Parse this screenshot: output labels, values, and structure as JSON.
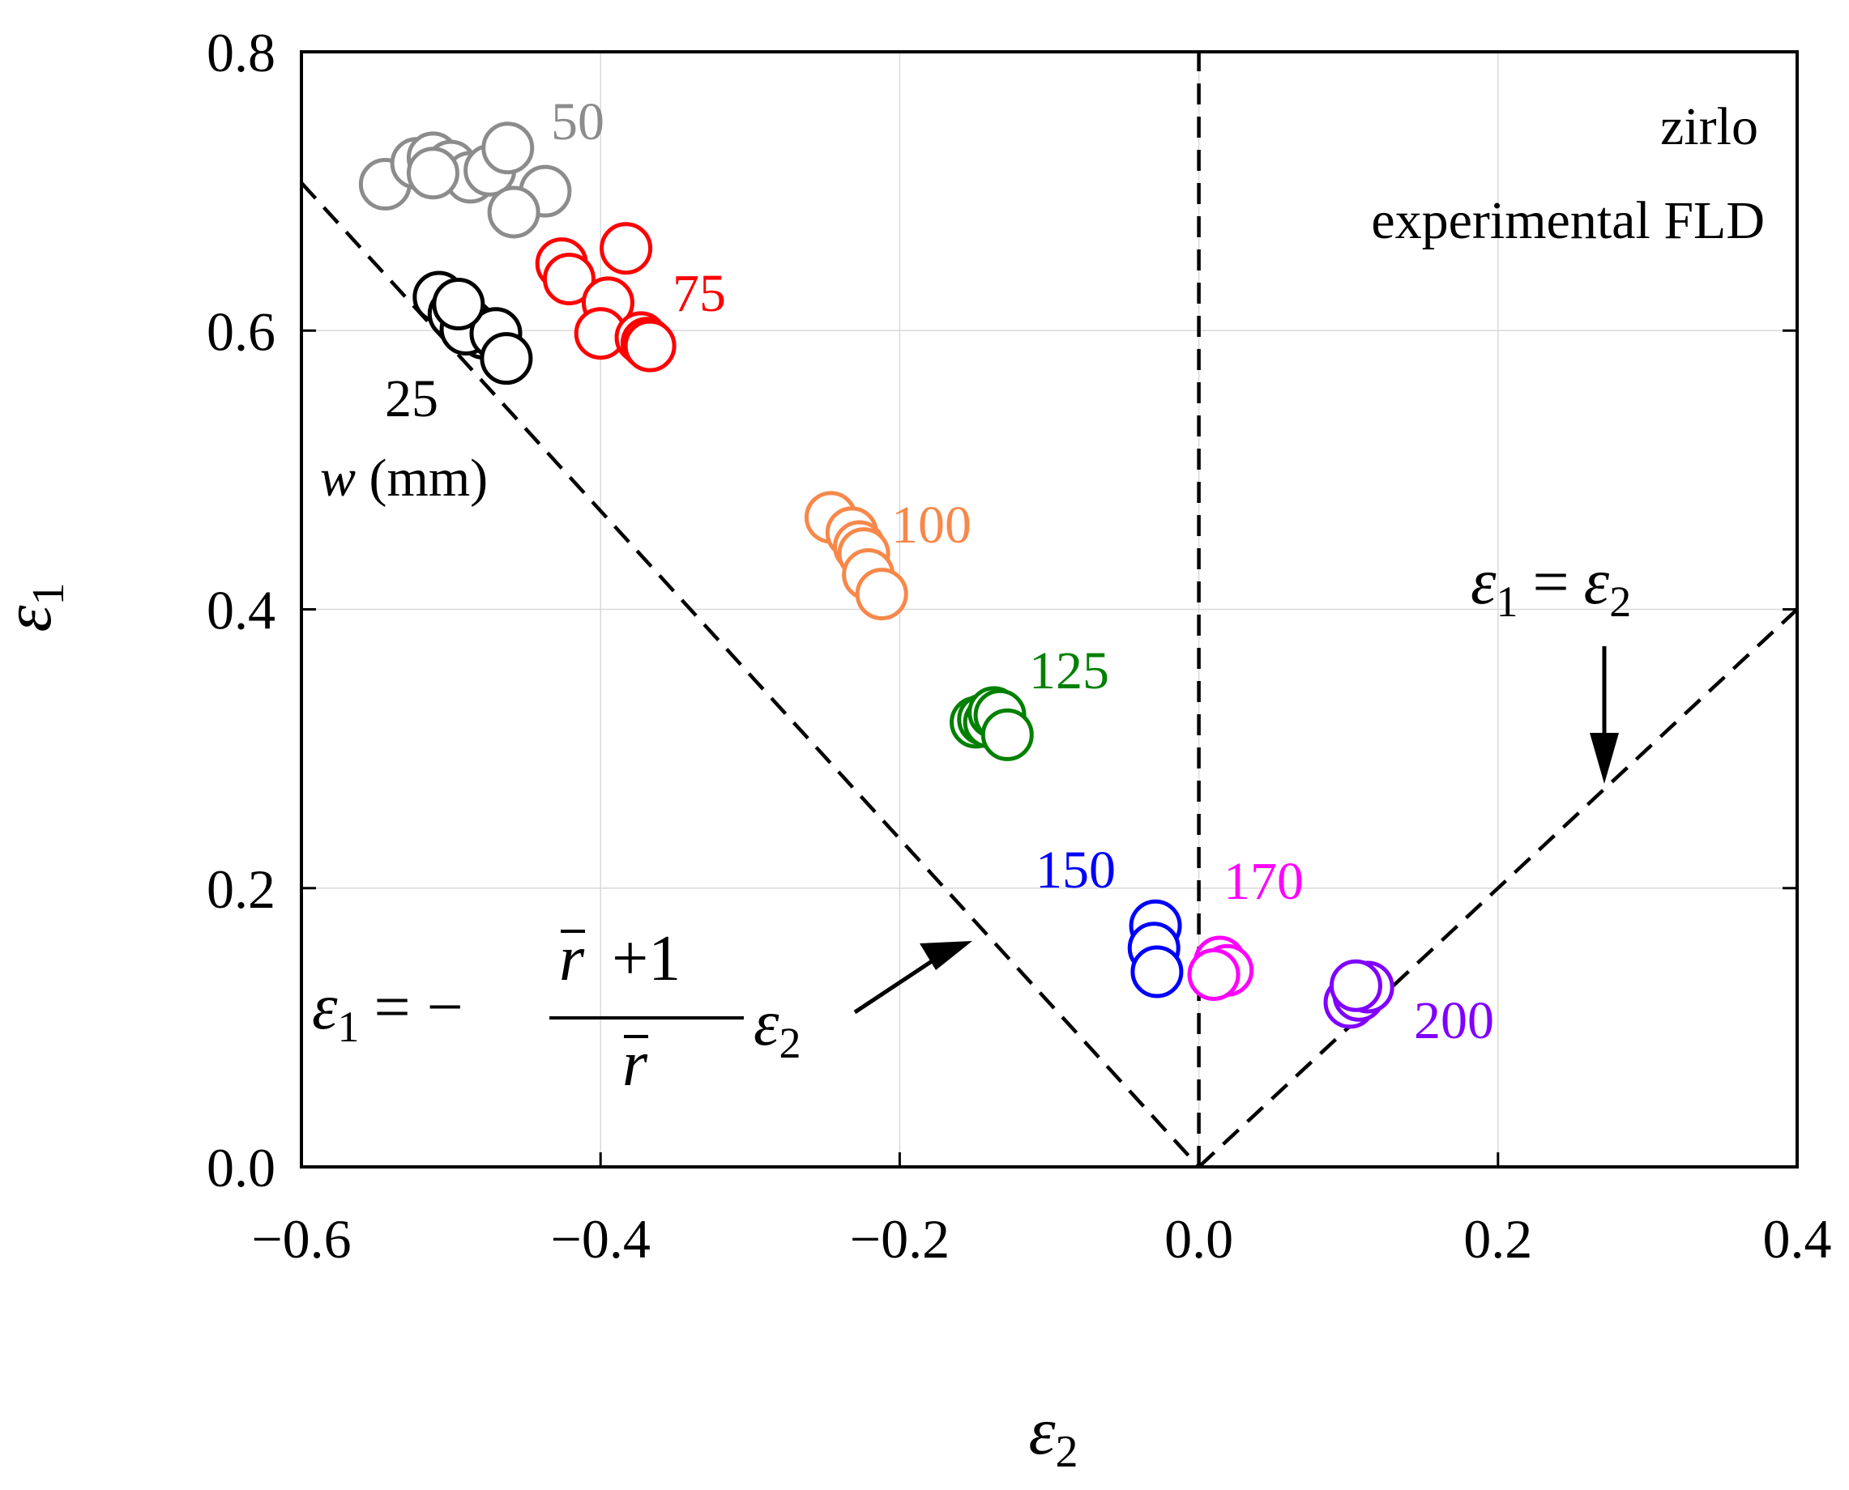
{
  "chart_data": {
    "type": "scatter",
    "title": "",
    "xlabel": "ε2",
    "ylabel": "ε1",
    "xlim": [
      -0.6,
      0.4
    ],
    "ylim": [
      0.0,
      0.8
    ],
    "grid": true,
    "xticks": [
      -0.6,
      -0.4,
      -0.2,
      0.0,
      0.2,
      0.4
    ],
    "yticks": [
      0.0,
      0.2,
      0.4,
      0.6,
      0.8
    ],
    "xtick_labels": [
      "−0.6",
      "−0.4",
      "−0.2",
      "0.0",
      "0.2",
      "0.4"
    ],
    "ytick_labels": [
      "0.0",
      "0.2",
      "0.4",
      "0.6",
      "0.8"
    ],
    "annotation": {
      "line1": "zirlo",
      "line2": "experimental FLD"
    },
    "width_legend": {
      "var": "w",
      "unit": "(mm)"
    },
    "series": [
      {
        "name": "25",
        "color": "#000000",
        "points": [
          [
            -0.508,
            0.624
          ],
          [
            -0.498,
            0.612
          ],
          [
            -0.488,
            0.604
          ],
          [
            -0.478,
            0.598
          ],
          [
            -0.49,
            0.601
          ],
          [
            -0.47,
            0.598
          ],
          [
            -0.495,
            0.619
          ],
          [
            -0.463,
            0.58
          ]
        ]
      },
      {
        "name": "50",
        "color": "#8c8c8c",
        "points": [
          [
            -0.544,
            0.705
          ],
          [
            -0.523,
            0.72
          ],
          [
            -0.512,
            0.724
          ],
          [
            -0.5,
            0.718
          ],
          [
            -0.487,
            0.71
          ],
          [
            -0.474,
            0.715
          ],
          [
            -0.462,
            0.731
          ],
          [
            -0.437,
            0.7
          ],
          [
            -0.458,
            0.685
          ],
          [
            -0.512,
            0.713
          ]
        ]
      },
      {
        "name": "75",
        "color": "#ff0000",
        "points": [
          [
            -0.426,
            0.648
          ],
          [
            -0.421,
            0.637
          ],
          [
            -0.395,
            0.62
          ],
          [
            -0.4,
            0.598
          ],
          [
            -0.383,
            0.659
          ],
          [
            -0.373,
            0.595
          ],
          [
            -0.369,
            0.591
          ],
          [
            -0.367,
            0.589
          ]
        ]
      },
      {
        "name": "100",
        "color": "#f7884a",
        "points": [
          [
            -0.246,
            0.466
          ],
          [
            -0.232,
            0.455
          ],
          [
            -0.227,
            0.445
          ],
          [
            -0.224,
            0.44
          ],
          [
            -0.221,
            0.425
          ],
          [
            -0.212,
            0.411
          ]
        ]
      },
      {
        "name": "125",
        "color": "#008000",
        "points": [
          [
            -0.149,
            0.319
          ],
          [
            -0.144,
            0.321
          ],
          [
            -0.14,
            0.319
          ],
          [
            -0.137,
            0.326
          ],
          [
            -0.133,
            0.324
          ],
          [
            -0.128,
            0.31
          ]
        ]
      },
      {
        "name": "150",
        "color": "#0000ff",
        "points": [
          [
            -0.029,
            0.173
          ],
          [
            -0.03,
            0.157
          ],
          [
            -0.028,
            0.14
          ]
        ]
      },
      {
        "name": "170",
        "color": "#ff00ff",
        "points": [
          [
            0.014,
            0.147
          ],
          [
            0.019,
            0.141
          ],
          [
            0.01,
            0.138
          ]
        ]
      },
      {
        "name": "200",
        "color": "#8000ff",
        "points": [
          [
            0.101,
            0.118
          ],
          [
            0.107,
            0.123
          ],
          [
            0.113,
            0.129
          ],
          [
            0.105,
            0.13
          ]
        ]
      }
    ],
    "point_labels": [
      {
        "text": "25",
        "color": "#000000"
      },
      {
        "text": "50",
        "color": "#8c8c8c"
      },
      {
        "text": "75",
        "color": "#ff0000"
      },
      {
        "text": "100",
        "color": "#f7884a"
      },
      {
        "text": "125",
        "color": "#008000"
      },
      {
        "text": "150",
        "color": "#0000ff"
      },
      {
        "text": "170",
        "color": "#ff00ff"
      },
      {
        "text": "200",
        "color": "#8000ff"
      }
    ],
    "reference_lines": [
      {
        "name": "left-branch",
        "style": "dashed",
        "points": [
          [
            -0.6,
            0.706
          ],
          [
            0.0,
            0.0
          ]
        ]
      },
      {
        "name": "right-branch",
        "style": "dashed",
        "points": [
          [
            0.0,
            0.0
          ],
          [
            0.4,
            0.4
          ]
        ]
      },
      {
        "name": "vertical",
        "style": "dashed",
        "points": [
          [
            0.0,
            0.0
          ],
          [
            0.0,
            0.8
          ]
        ]
      }
    ],
    "equations": {
      "left": {
        "lhs": "ε1",
        "equals": "= −",
        "numerator": "r + 1",
        "denominator": "r",
        "rhs": "ε2"
      },
      "right": {
        "lhs": "ε1",
        "equals": "=",
        "rhs": "ε2"
      }
    }
  }
}
